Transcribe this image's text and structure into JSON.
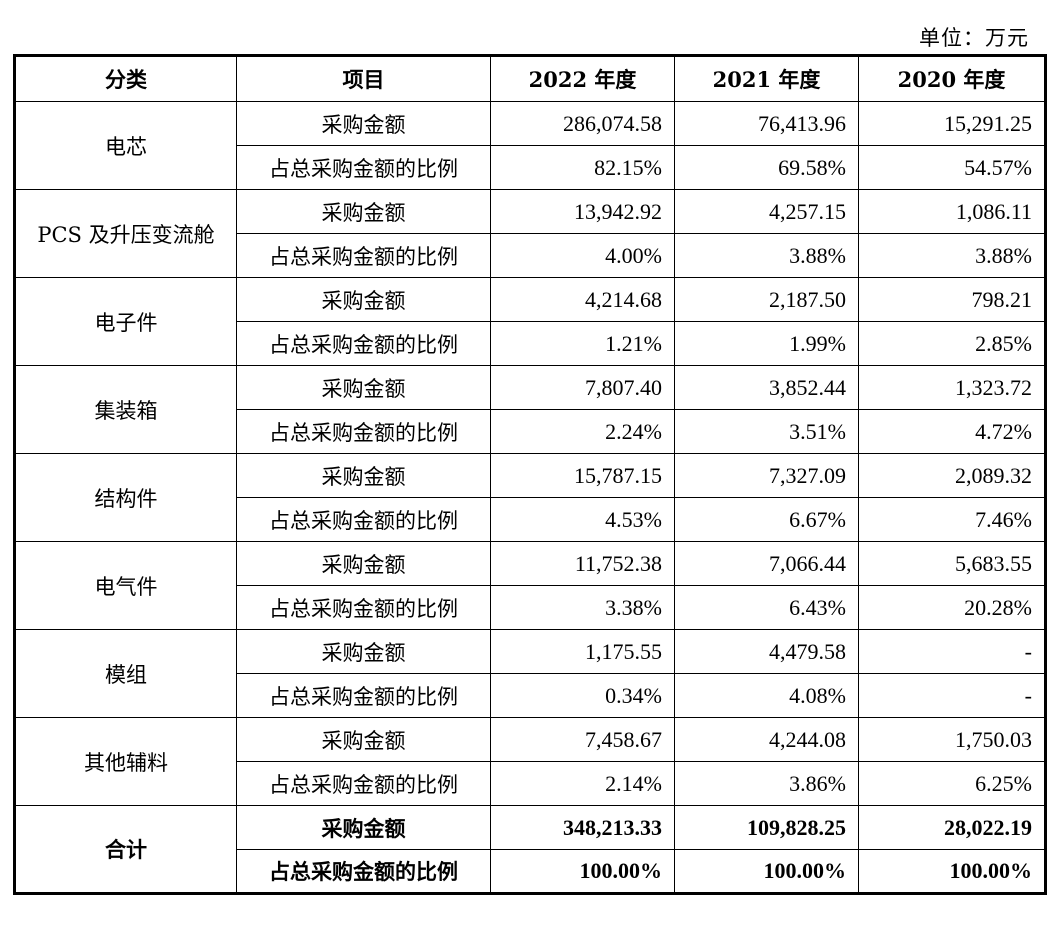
{
  "unit_label": "单位：万元",
  "headers": [
    "分类",
    "项目",
    "2022 年度",
    "2021 年度",
    "2020 年度"
  ],
  "groups": [
    {
      "category": "电芯",
      "rows": [
        {
          "item": "采购金额",
          "values": [
            "286,074.58",
            "76,413.96",
            "15,291.25"
          ]
        },
        {
          "item": "占总采购金额的比例",
          "values": [
            "82.15%",
            "69.58%",
            "54.57%"
          ]
        }
      ]
    },
    {
      "category": "PCS 及升压变流舱",
      "rows": [
        {
          "item": "采购金额",
          "values": [
            "13,942.92",
            "4,257.15",
            "1,086.11"
          ]
        },
        {
          "item": "占总采购金额的比例",
          "values": [
            "4.00%",
            "3.88%",
            "3.88%"
          ]
        }
      ]
    },
    {
      "category": "电子件",
      "rows": [
        {
          "item": "采购金额",
          "values": [
            "4,214.68",
            "2,187.50",
            "798.21"
          ]
        },
        {
          "item": "占总采购金额的比例",
          "values": [
            "1.21%",
            "1.99%",
            "2.85%"
          ]
        }
      ]
    },
    {
      "category": "集装箱",
      "rows": [
        {
          "item": "采购金额",
          "values": [
            "7,807.40",
            "3,852.44",
            "1,323.72"
          ]
        },
        {
          "item": "占总采购金额的比例",
          "values": [
            "2.24%",
            "3.51%",
            "4.72%"
          ]
        }
      ]
    },
    {
      "category": "结构件",
      "rows": [
        {
          "item": "采购金额",
          "values": [
            "15,787.15",
            "7,327.09",
            "2,089.32"
          ]
        },
        {
          "item": "占总采购金额的比例",
          "values": [
            "4.53%",
            "6.67%",
            "7.46%"
          ]
        }
      ]
    },
    {
      "category": "电气件",
      "rows": [
        {
          "item": "采购金额",
          "values": [
            "11,752.38",
            "7,066.44",
            "5,683.55"
          ]
        },
        {
          "item": "占总采购金额的比例",
          "values": [
            "3.38%",
            "6.43%",
            "20.28%"
          ]
        }
      ]
    },
    {
      "category": "模组",
      "rows": [
        {
          "item": "采购金额",
          "values": [
            "1,175.55",
            "4,479.58",
            "-"
          ]
        },
        {
          "item": "占总采购金额的比例",
          "values": [
            "0.34%",
            "4.08%",
            "-"
          ]
        }
      ]
    },
    {
      "category": "其他辅料",
      "rows": [
        {
          "item": "采购金额",
          "values": [
            "7,458.67",
            "4,244.08",
            "1,750.03"
          ]
        },
        {
          "item": "占总采购金额的比例",
          "values": [
            "2.14%",
            "3.86%",
            "6.25%"
          ]
        }
      ]
    },
    {
      "category": "合计",
      "total": true,
      "rows": [
        {
          "item": "采购金额",
          "values": [
            "348,213.33",
            "109,828.25",
            "28,022.19"
          ]
        },
        {
          "item": "占总采购金额的比例",
          "values": [
            "100.00%",
            "100.00%",
            "100.00%"
          ]
        }
      ]
    }
  ]
}
